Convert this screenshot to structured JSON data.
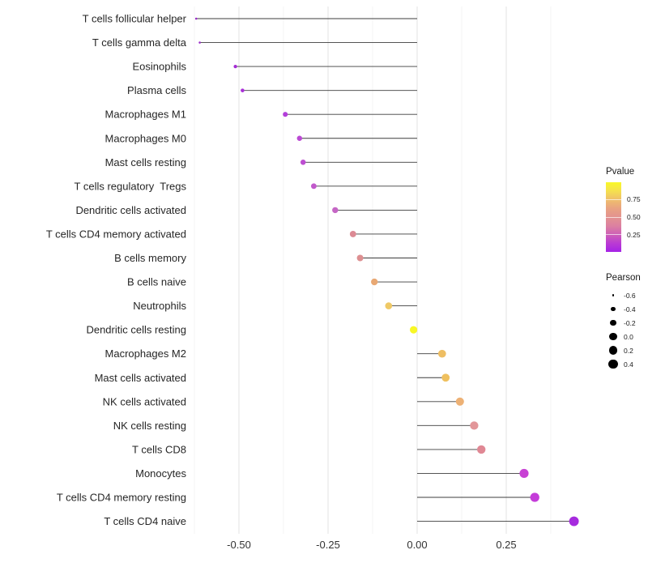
{
  "chart_data": {
    "type": "scatter",
    "variant": "lollipop",
    "orientation": "horizontal",
    "title": "",
    "xlabel": "",
    "ylabel": "",
    "x_tick_labels": [
      "-0.50",
      "-0.25",
      "0.00",
      "0.25"
    ],
    "x_tick_values": [
      -0.5,
      -0.25,
      0,
      0.25
    ],
    "x_minor_gridlines": [
      -0.625,
      -0.375,
      -0.125,
      0.125,
      0.375
    ],
    "xlim": [
      -0.632,
      0.462
    ],
    "baseline": 0,
    "grid": "vertical-only",
    "legend_position": "right",
    "points": [
      {
        "label": "T cells follicular helper",
        "pearson": -0.62,
        "pvalue": 0.01,
        "color": "#9A2BC9"
      },
      {
        "label": "T cells gamma delta",
        "pearson": -0.61,
        "pvalue": 0.01,
        "color": "#9A2BC9"
      },
      {
        "label": "Eosinophils",
        "pearson": -0.51,
        "pvalue": 0.03,
        "color": "#A42CD4"
      },
      {
        "label": "Plasma cells",
        "pearson": -0.49,
        "pvalue": 0.05,
        "color": "#A92FD8"
      },
      {
        "label": "Macrophages M1",
        "pearson": -0.37,
        "pvalue": 0.1,
        "color": "#B33FDA"
      },
      {
        "label": "Macrophages M0",
        "pearson": -0.33,
        "pvalue": 0.13,
        "color": "#BB49D4"
      },
      {
        "label": "Mast cells resting",
        "pearson": -0.32,
        "pvalue": 0.14,
        "color": "#BD4ED1"
      },
      {
        "label": "T cells regulatory  Tregs",
        "pearson": -0.29,
        "pvalue": 0.19,
        "color": "#C159CB"
      },
      {
        "label": "Dendritic cells activated",
        "pearson": -0.23,
        "pvalue": 0.25,
        "color": "#C566C5"
      },
      {
        "label": "T cells CD4 memory activated",
        "pearson": -0.18,
        "pvalue": 0.42,
        "color": "#DC8A94"
      },
      {
        "label": "B cells memory",
        "pearson": -0.16,
        "pvalue": 0.44,
        "color": "#DD8F91"
      },
      {
        "label": "B cells naive",
        "pearson": -0.12,
        "pvalue": 0.58,
        "color": "#E8A873"
      },
      {
        "label": "Neutrophils",
        "pearson": -0.08,
        "pvalue": 0.68,
        "color": "#EFC966"
      },
      {
        "label": "Dendritic cells resting",
        "pearson": -0.01,
        "pvalue": 0.97,
        "color": "#F8F725"
      },
      {
        "label": "Macrophages M2",
        "pearson": 0.07,
        "pvalue": 0.64,
        "color": "#EEBE63"
      },
      {
        "label": "Mast cells activated",
        "pearson": 0.08,
        "pvalue": 0.65,
        "color": "#EFC05F"
      },
      {
        "label": "NK cells activated",
        "pearson": 0.12,
        "pvalue": 0.57,
        "color": "#EDB175"
      },
      {
        "label": "NK cells resting",
        "pearson": 0.16,
        "pvalue": 0.46,
        "color": "#E29699"
      },
      {
        "label": "T cells CD8",
        "pearson": 0.18,
        "pvalue": 0.42,
        "color": "#E08894"
      },
      {
        "label": "Monocytes",
        "pearson": 0.3,
        "pvalue": 0.17,
        "color": "#C841D4"
      },
      {
        "label": "T cells CD4 memory resting",
        "pearson": 0.33,
        "pvalue": 0.14,
        "color": "#C43CD9"
      },
      {
        "label": "T cells CD4 naive",
        "pearson": 0.44,
        "pvalue": 0.05,
        "color": "#A62BDE"
      }
    ],
    "pvalue_legend": {
      "title": "Pvalue",
      "tick_labels": [
        "0.75",
        "0.50",
        "0.25"
      ],
      "tick_positions": [
        0.245,
        0.5,
        0.755
      ],
      "gradient_top_to_bottom": [
        "#F9F828",
        "#F5E04F",
        "#EFBF6C",
        "#E9A281",
        "#E39390",
        "#DC81A0",
        "#CE60B7",
        "#BA3BD3",
        "#A522E6"
      ]
    },
    "pearson_legend": {
      "title": "Pearson",
      "items": [
        {
          "label": "-0.6",
          "value": -0.6
        },
        {
          "label": "-0.4",
          "value": -0.4
        },
        {
          "label": "-0.2",
          "value": -0.2
        },
        {
          "label": "0.0",
          "value": 0.0
        },
        {
          "label": "0.2",
          "value": 0.2
        },
        {
          "label": "0.4",
          "value": 0.4
        }
      ]
    }
  },
  "colors": {
    "background": "#FFFFFF",
    "segment": "#3D3D3D",
    "grid_major": "#E3E3E3",
    "grid_minor": "#F1F1F1",
    "axis_tick_text": "#333333",
    "y_label_text": "#262626",
    "legend_dot": "#000000"
  }
}
